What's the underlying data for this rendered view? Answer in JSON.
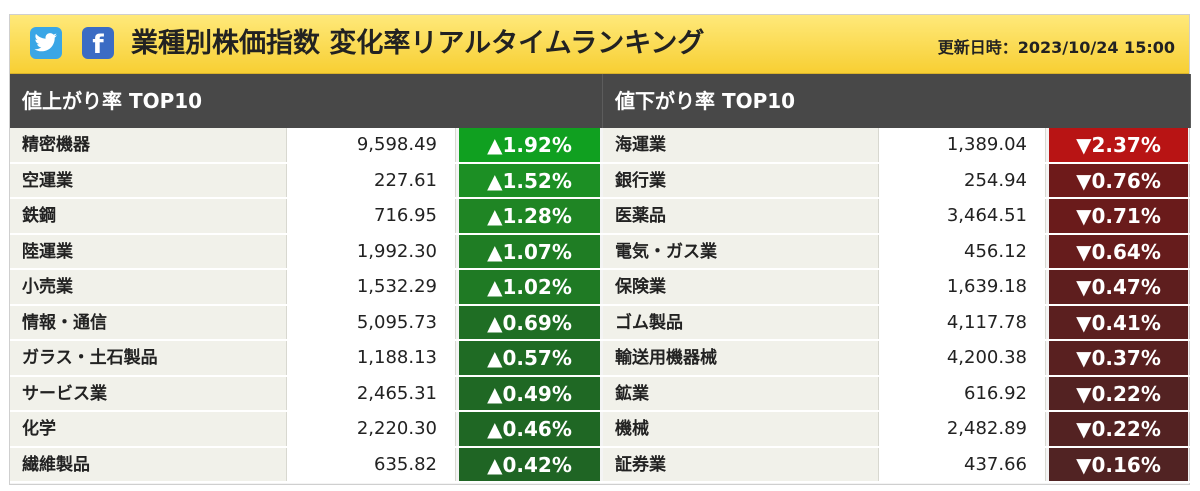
{
  "header": {
    "title": "業種別株価指数 変化率リアルタイムランキング",
    "updated": "更新日時：2023/10/24 15:00",
    "icons": [
      "twitter-icon",
      "facebook-icon"
    ],
    "bg_color": "#f7cf33"
  },
  "gainers": {
    "title": "値上がり率 TOP10",
    "rows": [
      {
        "name": "精密機器",
        "value": "9,598.49",
        "change": "▲1.92%",
        "color": "#10a020"
      },
      {
        "name": "空運業",
        "value": "227.61",
        "change": "▲1.52%",
        "color": "#1c8f24"
      },
      {
        "name": "鉄鋼",
        "value": "716.95",
        "change": "▲1.28%",
        "color": "#1f8524"
      },
      {
        "name": "陸運業",
        "value": "1,992.30",
        "change": "▲1.07%",
        "color": "#1f7d24"
      },
      {
        "name": "小売業",
        "value": "1,532.29",
        "change": "▲1.02%",
        "color": "#1f7a24"
      },
      {
        "name": "情報・通信",
        "value": "5,095.73",
        "change": "▲0.69%",
        "color": "#1f6e24"
      },
      {
        "name": "ガラス・土石製品",
        "value": "1,188.13",
        "change": "▲0.57%",
        "color": "#1f6b24"
      },
      {
        "name": "サービス業",
        "value": "2,465.31",
        "change": "▲0.49%",
        "color": "#1f6824"
      },
      {
        "name": "化学",
        "value": "2,220.30",
        "change": "▲0.46%",
        "color": "#1f6724"
      },
      {
        "name": "繊維製品",
        "value": "635.82",
        "change": "▲0.42%",
        "color": "#1f6524"
      }
    ]
  },
  "losers": {
    "title": "値下がり率 TOP10",
    "rows": [
      {
        "name": "海運業",
        "value": "1,389.04",
        "change": "▼2.37%",
        "color": "#b81414"
      },
      {
        "name": "銀行業",
        "value": "254.94",
        "change": "▼0.76%",
        "color": "#6e1a1a"
      },
      {
        "name": "医薬品",
        "value": "3,464.51",
        "change": "▼0.71%",
        "color": "#6a1b1b"
      },
      {
        "name": "電気・ガス業",
        "value": "456.12",
        "change": "▼0.64%",
        "color": "#661c1c"
      },
      {
        "name": "保険業",
        "value": "1,639.18",
        "change": "▼0.47%",
        "color": "#5e1e1e"
      },
      {
        "name": "ゴム製品",
        "value": "4,117.78",
        "change": "▼0.41%",
        "color": "#5b1f1f"
      },
      {
        "name": "輸送用機器械",
        "value": "4,200.38",
        "change": "▼0.37%",
        "color": "#592020"
      },
      {
        "name": "鉱業",
        "value": "616.92",
        "change": "▼0.22%",
        "color": "#532222"
      },
      {
        "name": "機械",
        "value": "2,482.89",
        "change": "▼0.22%",
        "color": "#532222"
      },
      {
        "name": "証券業",
        "value": "437.66",
        "change": "▼0.16%",
        "color": "#512323"
      }
    ]
  }
}
